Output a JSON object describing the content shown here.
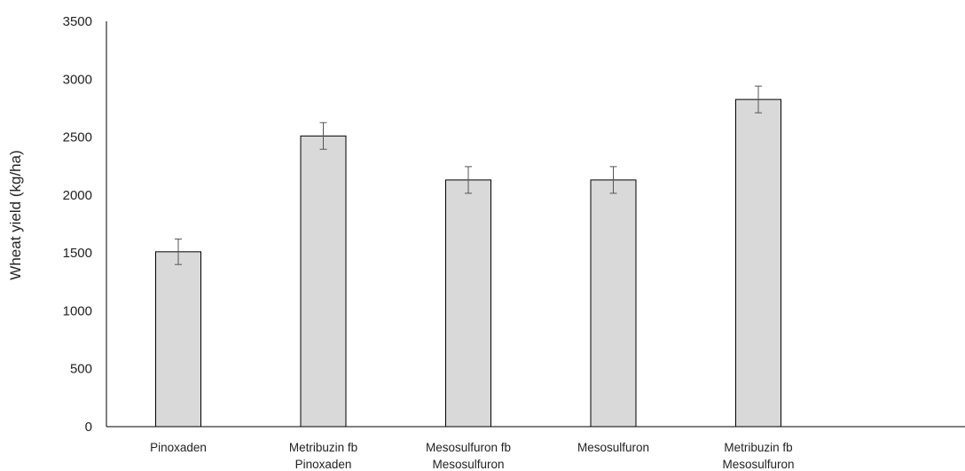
{
  "chart_data": {
    "type": "bar",
    "title": "",
    "xlabel": "",
    "ylabel": "Wheat yield (kg/ha)",
    "categories": [
      [
        "Pinoxaden"
      ],
      [
        "Metribuzin fb",
        "Pinoxaden"
      ],
      [
        "Mesosulfuron fb",
        "Mesosulfuron"
      ],
      [
        "Mesosulfuron"
      ],
      [
        "Metribuzin fb",
        "Mesosulfuron"
      ]
    ],
    "values": [
      1510,
      2510,
      2130,
      2130,
      2825
    ],
    "error": [
      110,
      115,
      115,
      115,
      115
    ],
    "ylim": [
      0,
      3500
    ],
    "yticks": [
      0,
      500,
      1000,
      1500,
      2000,
      2500,
      3000,
      3500
    ],
    "grid": false,
    "legend": "none",
    "colors": {
      "bar_fill": "#d9d9d9",
      "bar_stroke": "#000000",
      "axis": "#000000",
      "error_bar": "#555555"
    }
  }
}
